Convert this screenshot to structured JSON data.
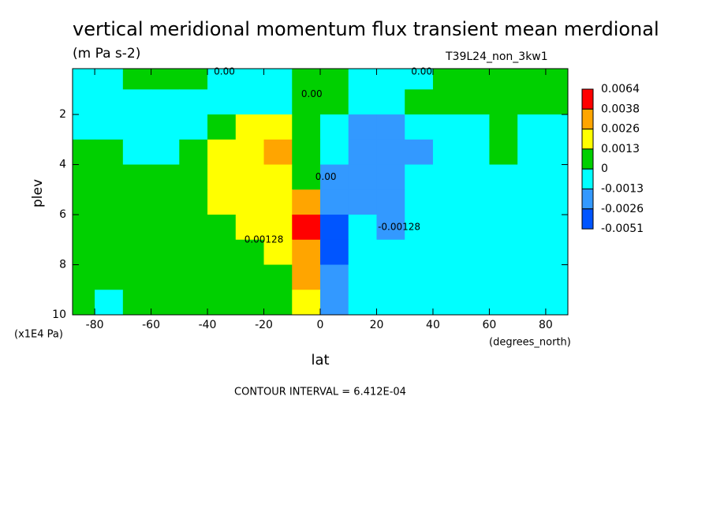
{
  "chart_data": {
    "type": "contour",
    "title": "vertical meridional momentum flux transient mean merdional",
    "subtitle": "(m Pa s-2)",
    "dataset": "T39L24_non_3kw1",
    "x_label": "lat",
    "x_units": "(degrees_north)",
    "y_label": "plev",
    "y_units": "(x1E4 Pa)",
    "footer": "CONTOUR INTERVAL = 6.412E-04",
    "xlim": [
      -87.86,
      87.86
    ],
    "ylim": [
      0.17,
      10
    ],
    "y_reversed": true,
    "xticks": [
      -80,
      -60,
      -40,
      -20,
      0,
      20,
      40,
      60,
      80
    ],
    "yticks": [
      2,
      4,
      6,
      8,
      10
    ],
    "levels": [
      0.0064,
      0.0038,
      0.0026,
      0.0013,
      0,
      -0.0013,
      -0.0026,
      -0.0051
    ],
    "colors": [
      "#ff0000",
      "#ffa500",
      "#ffff00",
      "#00d000",
      "#00ffff",
      "#3399ff",
      "#0055ff"
    ],
    "lat": [
      -85,
      -75,
      -65,
      -55,
      -45,
      -35,
      -25,
      -15,
      -5,
      5,
      15,
      25,
      35,
      45,
      55,
      65,
      75,
      85
    ],
    "plev": [
      0.5,
      1.5,
      2.5,
      3.5,
      4.5,
      5.5,
      6.5,
      7.5,
      8.5,
      9.5
    ],
    "z": [
      [
        -0.0005,
        -0.0005,
        0.0005,
        0.0005,
        0.0005,
        -0.0005,
        -0.0005,
        -0.0005,
        0.0005,
        0.0005,
        -0.0005,
        -0.0005,
        -0.0005,
        0.0005,
        0.0005,
        0.0005,
        0.0005,
        0.0005
      ],
      [
        -0.0005,
        -0.0005,
        -0.0005,
        -0.0005,
        -0.0005,
        -0.0005,
        -0.0005,
        -0.0005,
        0.0005,
        0.0005,
        -0.0005,
        -0.0005,
        0.0005,
        0.0005,
        0.0005,
        0.0005,
        0.0005,
        0.0005
      ],
      [
        -0.0005,
        -0.0005,
        -0.0005,
        -0.0005,
        -0.0005,
        0.0005,
        0.0018,
        0.0018,
        0.0005,
        -0.0005,
        -0.0018,
        -0.0018,
        -0.0005,
        -0.0005,
        -0.0005,
        0.0005,
        -0.0005,
        -0.0005
      ],
      [
        0.0005,
        0.0005,
        -0.0005,
        -0.0005,
        0.0005,
        0.0018,
        0.0018,
        0.003,
        0.0005,
        -0.0005,
        -0.0018,
        -0.0018,
        -0.0018,
        -0.0005,
        -0.0005,
        0.0005,
        -0.0005,
        -0.0005
      ],
      [
        0.0005,
        0.0005,
        0.0005,
        0.0005,
        0.0005,
        0.0018,
        0.0018,
        0.0018,
        0.0005,
        -0.0018,
        -0.0018,
        -0.0018,
        -0.0005,
        -0.0005,
        -0.0005,
        -0.0005,
        -0.0005,
        -0.0005
      ],
      [
        0.0005,
        0.0005,
        0.0005,
        0.0005,
        0.0005,
        0.0018,
        0.0018,
        0.0018,
        0.003,
        -0.0018,
        -0.0018,
        -0.0018,
        -0.0005,
        -0.0005,
        -0.0005,
        -0.0005,
        -0.0005,
        -0.0005
      ],
      [
        0.0005,
        0.0005,
        0.0005,
        0.0005,
        0.0005,
        0.0005,
        0.0018,
        0.0018,
        0.0045,
        -0.0035,
        -0.0005,
        -0.0018,
        -0.0005,
        -0.0005,
        -0.0005,
        -0.0005,
        -0.0005,
        -0.0005
      ],
      [
        0.0005,
        0.0005,
        0.0005,
        0.0005,
        0.0005,
        0.0005,
        0.0005,
        0.0018,
        0.003,
        -0.0035,
        -0.0005,
        -0.0005,
        -0.0005,
        -0.0005,
        -0.0005,
        -0.0005,
        -0.0005,
        -0.0005
      ],
      [
        0.0005,
        0.0005,
        0.0005,
        0.0005,
        0.0005,
        0.0005,
        0.0005,
        0.0005,
        0.003,
        -0.0018,
        -0.0005,
        -0.0005,
        -0.0005,
        -0.0005,
        -0.0005,
        -0.0005,
        -0.0005,
        -0.0005
      ],
      [
        0.0005,
        -0.0005,
        0.0005,
        0.0005,
        0.0005,
        0.0005,
        0.0005,
        0.0005,
        0.0018,
        -0.0018,
        -0.0005,
        -0.0005,
        -0.0005,
        -0.0005,
        -0.0005,
        -0.0005,
        -0.0005,
        -0.0005
      ]
    ],
    "contour_labels": [
      {
        "text": "0.00",
        "lat": -34,
        "plev": 0.3
      },
      {
        "text": "0.00",
        "lat": 36,
        "plev": 0.3
      },
      {
        "text": "0.00",
        "lat": -3,
        "plev": 1.2
      },
      {
        "text": "0.00",
        "lat": 2,
        "plev": 4.5
      },
      {
        "text": "0.00128",
        "lat": -20,
        "plev": 7
      },
      {
        "text": "-0.00128",
        "lat": 28,
        "plev": 6.5
      }
    ]
  }
}
